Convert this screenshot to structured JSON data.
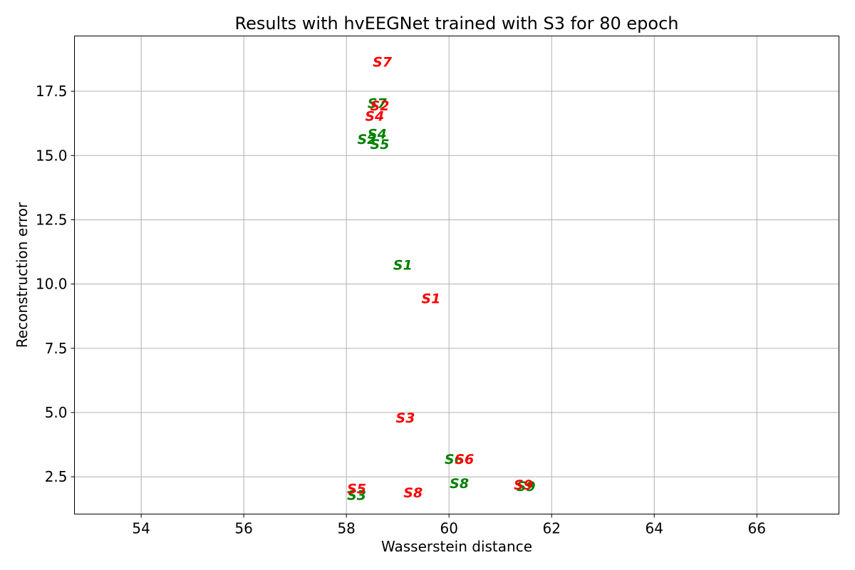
{
  "chart_data": {
    "type": "scatter",
    "title": "Results with hvEEGNet trained with S3 for 80 epoch",
    "xlabel": "Wasserstein distance",
    "ylabel": "Reconstruction error",
    "xlim": [
      52.7,
      67.6
    ],
    "ylim": [
      1.05,
      19.65
    ],
    "xticks": [
      54,
      56,
      58,
      60,
      62,
      64,
      66
    ],
    "yticks": [
      2.5,
      5.0,
      7.5,
      10.0,
      12.5,
      15.0,
      17.5
    ],
    "xtick_labels": [
      "54",
      "56",
      "58",
      "60",
      "62",
      "64",
      "66"
    ],
    "ytick_labels": [
      "2.5",
      "5.0",
      "7.5",
      "10.0",
      "12.5",
      "15.0",
      "17.5"
    ],
    "grid": true,
    "legend": "none",
    "colors": {
      "green": "#008000",
      "red": "#ff0000"
    },
    "series": [
      {
        "color": "green",
        "points": [
          {
            "label": "S1",
            "x": 59.1,
            "y": 10.75
          },
          {
            "label": "S2",
            "x": 58.4,
            "y": 15.65
          },
          {
            "label": "S3",
            "x": 58.2,
            "y": 1.8
          },
          {
            "label": "S4",
            "x": 58.6,
            "y": 15.85
          },
          {
            "label": "S5",
            "x": 58.65,
            "y": 15.45
          },
          {
            "label": "S6",
            "x": 60.1,
            "y": 3.2
          },
          {
            "label": "S7",
            "x": 58.6,
            "y": 17.05
          },
          {
            "label": "S8",
            "x": 60.2,
            "y": 2.25
          },
          {
            "label": "S9",
            "x": 61.5,
            "y": 2.15
          }
        ]
      },
      {
        "color": "red",
        "points": [
          {
            "label": "S1",
            "x": 59.65,
            "y": 9.45
          },
          {
            "label": "S2",
            "x": 58.65,
            "y": 16.95
          },
          {
            "label": "S3",
            "x": 59.15,
            "y": 4.8
          },
          {
            "label": "S4",
            "x": 58.55,
            "y": 16.55
          },
          {
            "label": "S5",
            "x": 58.2,
            "y": 2.05
          },
          {
            "label": "S6",
            "x": 60.3,
            "y": 3.2
          },
          {
            "label": "S7",
            "x": 58.7,
            "y": 18.65
          },
          {
            "label": "S8",
            "x": 59.3,
            "y": 1.9
          },
          {
            "label": "S9",
            "x": 61.45,
            "y": 2.2
          }
        ]
      }
    ]
  }
}
